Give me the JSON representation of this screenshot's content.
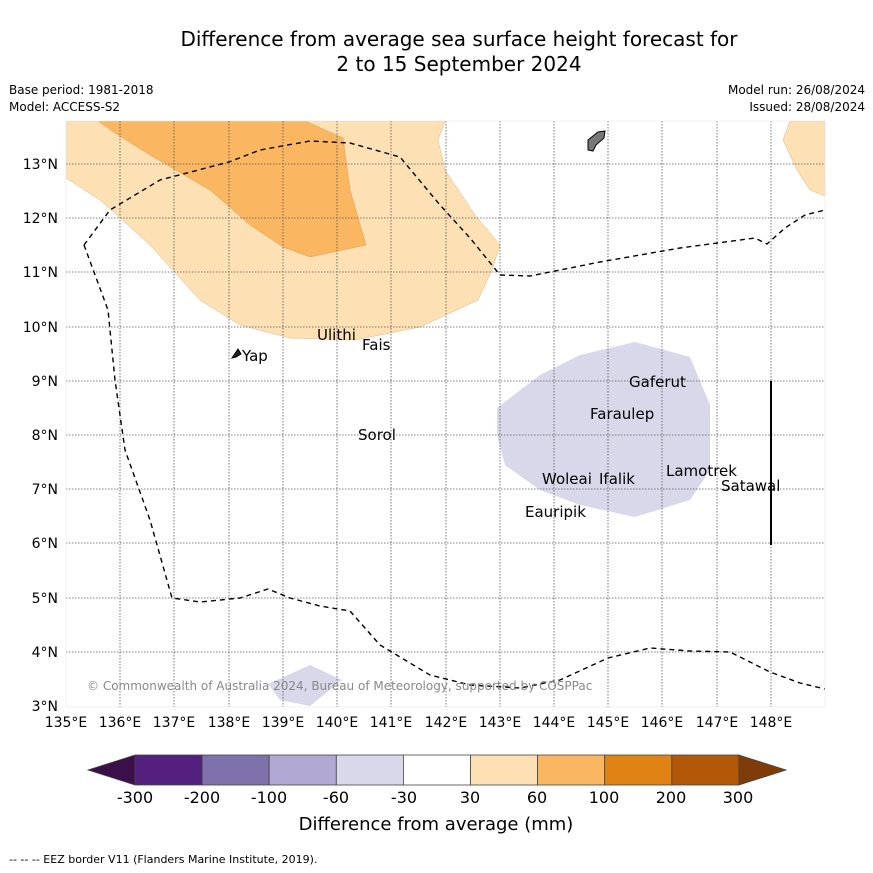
{
  "title_line1": "Difference from average sea surface height forecast for",
  "title_line2": "2 to 15 September 2024",
  "meta": {
    "base_period": "Base period: 1981-2018",
    "model": "Model: ACCESS-S2",
    "model_run": "Model run: 26/08/2024",
    "issued": "Issued: 28/08/2024"
  },
  "map": {
    "lon_labels": [
      "135°E",
      "136°E",
      "137°E",
      "138°E",
      "139°E",
      "140°E",
      "141°E",
      "142°E",
      "143°E",
      "144°E",
      "145°E",
      "146°E",
      "147°E",
      "148°E"
    ],
    "lat_labels": [
      "13°N",
      "12°N",
      "11°N",
      "10°N",
      "9°N",
      "8°N",
      "7°N",
      "6°N",
      "5°N",
      "4°N",
      "3°N"
    ],
    "places": [
      "Yap",
      "Ulithi",
      "Fais",
      "Sorol",
      "Gaferut",
      "Faraulep",
      "Woleai",
      "Ifalik",
      "Lamotrek",
      "Satawal",
      "Eauripik"
    ],
    "copyright": "© Commonwealth of Australia 2024, Bureau of Meteorology, supported by COSPPac"
  },
  "colorbar": {
    "labels": [
      "-300",
      "-200",
      "-100",
      "-60",
      "-30",
      "30",
      "60",
      "100",
      "200",
      "300"
    ],
    "colors": [
      "#3a0f4a",
      "#54207f",
      "#7f71ab",
      "#b1a9d3",
      "#d9d8ea",
      "#ffffff",
      "#fee0b5",
      "#fbb661",
      "#e08214",
      "#b35806",
      "#7f3b08"
    ],
    "title": "Difference from average (mm)"
  },
  "footer": "-- -- -- EEZ border V11 (Flanders Marine Institute, 2019)."
}
